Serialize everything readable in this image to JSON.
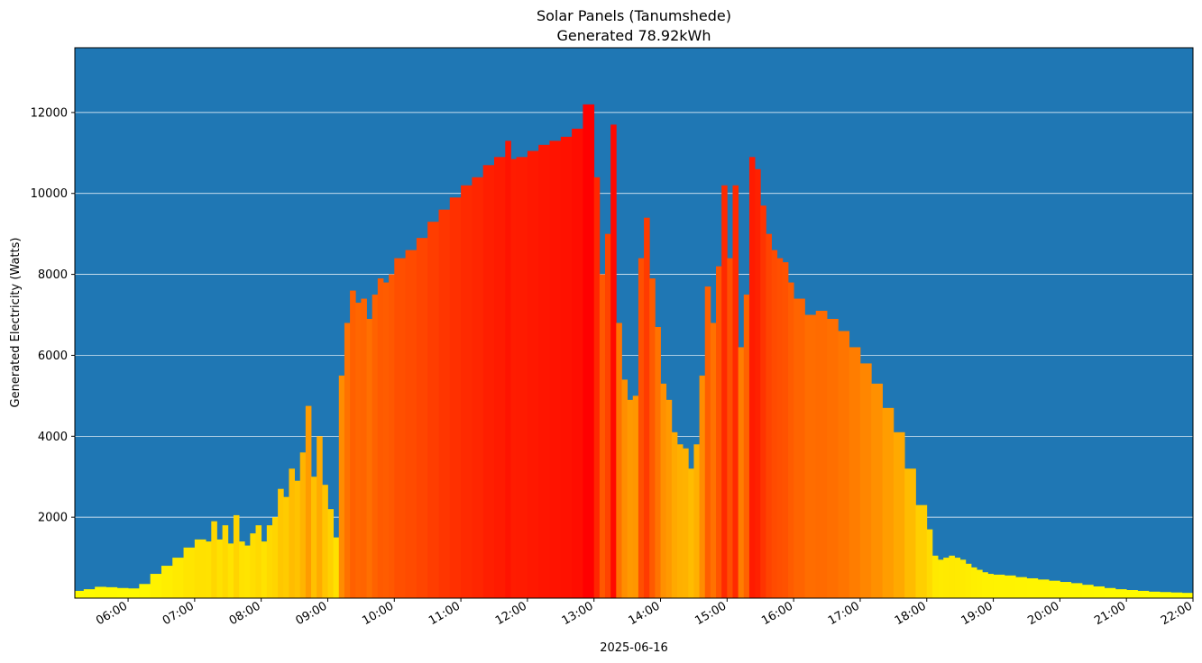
{
  "chart_data": {
    "type": "bar",
    "title": "Solar Panels (Tanumshede)",
    "subtitle": "Generated 78.92kWh",
    "xlabel": "2025-06-16",
    "ylabel": "Generated Electricity (Watts)",
    "background_color": "#1f77b4",
    "grid": "horizontal",
    "grid_color": "#ffffff",
    "colormap": "autumn_r",
    "color_low": "#ffff00",
    "color_high": "#ff0000",
    "x_start": "05:12",
    "x_end": "22:00",
    "y_min": 0,
    "y_max": 13600,
    "y_ticks": [
      2000,
      4000,
      6000,
      8000,
      10000,
      12000
    ],
    "y_tick_labels": [
      "2000",
      "4000",
      "6000",
      "8000",
      "10000",
      "12000"
    ],
    "x_ticks": [
      "06:00",
      "07:00",
      "08:00",
      "09:00",
      "10:00",
      "11:00",
      "12:00",
      "13:00",
      "14:00",
      "15:00",
      "16:00",
      "17:00",
      "18:00",
      "19:00",
      "20:00",
      "21:00",
      "22:00"
    ],
    "series": [
      {
        "times": [
          "05:12",
          "05:20",
          "05:30",
          "05:40",
          "05:50",
          "06:00",
          "06:10",
          "06:20",
          "06:30",
          "06:40",
          "06:50",
          "07:00",
          "07:10",
          "07:15",
          "07:20",
          "07:25",
          "07:30",
          "07:35",
          "07:40",
          "07:45",
          "07:50",
          "07:55",
          "08:00",
          "08:05",
          "08:10",
          "08:15",
          "08:20",
          "08:25",
          "08:30",
          "08:35",
          "08:40",
          "08:45",
          "08:50",
          "08:55",
          "09:00",
          "09:05",
          "09:10",
          "09:15",
          "09:20",
          "09:25",
          "09:30",
          "09:35",
          "09:40",
          "09:45",
          "09:50",
          "09:55",
          "10:00",
          "10:10",
          "10:20",
          "10:30",
          "10:40",
          "10:50",
          "11:00",
          "11:10",
          "11:20",
          "11:30",
          "11:40",
          "11:45",
          "11:50",
          "12:00",
          "12:10",
          "12:20",
          "12:30",
          "12:40",
          "12:50",
          "13:00",
          "13:05",
          "13:10",
          "13:15",
          "13:20",
          "13:25",
          "13:30",
          "13:35",
          "13:40",
          "13:45",
          "13:50",
          "13:55",
          "14:00",
          "14:05",
          "14:10",
          "14:15",
          "14:20",
          "14:25",
          "14:30",
          "14:35",
          "14:40",
          "14:45",
          "14:50",
          "14:55",
          "15:00",
          "15:05",
          "15:10",
          "15:15",
          "15:20",
          "15:25",
          "15:30",
          "15:35",
          "15:40",
          "15:45",
          "15:50",
          "15:55",
          "16:00",
          "16:10",
          "16:20",
          "16:30",
          "16:40",
          "16:50",
          "17:00",
          "17:10",
          "17:20",
          "17:30",
          "17:40",
          "17:50",
          "18:00",
          "18:05",
          "18:10",
          "18:15",
          "18:20",
          "18:25",
          "18:30",
          "18:35",
          "18:40",
          "18:45",
          "18:50",
          "18:55",
          "19:00",
          "19:10",
          "19:20",
          "19:30",
          "19:40",
          "19:50",
          "20:00",
          "20:10",
          "20:20",
          "20:30",
          "20:40",
          "20:50",
          "21:00",
          "21:10",
          "21:20",
          "21:30",
          "21:40",
          "21:50",
          "22:00"
        ],
        "values": [
          180,
          220,
          280,
          270,
          250,
          240,
          350,
          600,
          800,
          1000,
          1250,
          1450,
          1400,
          1900,
          1450,
          1800,
          1350,
          2050,
          1400,
          1300,
          1600,
          1800,
          1400,
          1800,
          2000,
          2700,
          2500,
          3200,
          2900,
          3600,
          4750,
          3000,
          4000,
          2800,
          2200,
          1500,
          5500,
          6800,
          7600,
          7300,
          7400,
          6900,
          7500,
          7900,
          7800,
          8000,
          8400,
          8600,
          8900,
          9300,
          9600,
          9900,
          10200,
          10400,
          10700,
          10900,
          11300,
          10850,
          10900,
          11050,
          11200,
          11300,
          11400,
          11600,
          12200,
          10400,
          8000,
          9000,
          11700,
          6800,
          5400,
          4900,
          5000,
          8400,
          9400,
          7900,
          6700,
          5300,
          4900,
          4100,
          3800,
          3700,
          3200,
          3800,
          5500,
          7700,
          6800,
          8200,
          10200,
          8400,
          10200,
          6200,
          7500,
          10900,
          10600,
          9700,
          9000,
          8600,
          8400,
          8300,
          7800,
          7400,
          7000,
          7100,
          6900,
          6600,
          6200,
          5800,
          5300,
          4700,
          4100,
          3200,
          2300,
          1700,
          1050,
          950,
          1000,
          1050,
          1000,
          950,
          850,
          760,
          700,
          640,
          600,
          580,
          560,
          520,
          490,
          460,
          430,
          400,
          370,
          330,
          290,
          250,
          220,
          200,
          180,
          160,
          150,
          140,
          130,
          120
        ]
      }
    ]
  }
}
